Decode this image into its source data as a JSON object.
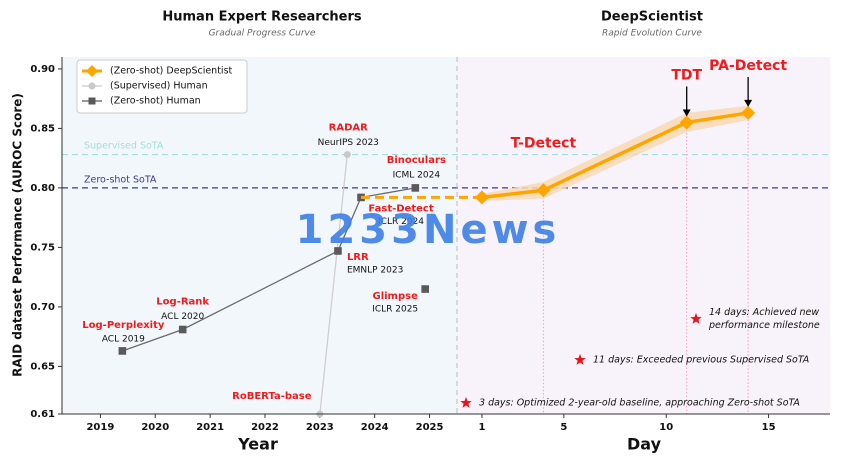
{
  "chart_data": [
    {
      "type": "line",
      "title": "Human Expert Researchers",
      "subtitle": "Gradual Progress Curve",
      "x_label": "Year",
      "y_label": "RAID dataset Performance (AUROC Score)",
      "xlim": [
        2018.3,
        2025.5
      ],
      "xticks": [
        2019,
        2020,
        2021,
        2022,
        2023,
        2024,
        2025
      ],
      "ylim": [
        0.61,
        0.91
      ],
      "yticks": [
        0.61,
        0.65,
        {
          "value": 0.7,
          "label": "0.70"
        },
        0.75,
        {
          "value": 0.8,
          "label": "0.80"
        },
        0.85,
        {
          "value": 0.9,
          "label": "0.90"
        }
      ],
      "reference_lines": [
        {
          "label": "Supervised SoTA",
          "value": 0.828,
          "color": "#a3dede"
        },
        {
          "label": "Zero-shot SoTA",
          "value": 0.8,
          "color": "#3b3b8f"
        }
      ],
      "series": [
        {
          "name": "(Supervised) Human",
          "color": "#c9c9c9",
          "marker": "circle",
          "x": [
            2023.0,
            2023.5
          ],
          "values": [
            0.61,
            0.828
          ],
          "labels": [
            "RoBERTa-base",
            "RADAR"
          ],
          "venues": [
            null,
            "NeurIPS 2023"
          ]
        },
        {
          "name": "(Zero-shot) Human",
          "color": "#5a5a5a",
          "marker": "square",
          "x": [
            2019.4,
            2020.5,
            2023.33,
            2023.75,
            2024.74,
            null,
            2024.92
          ],
          "values": [
            0.663,
            0.681,
            0.747,
            0.792,
            0.8,
            null,
            0.715
          ],
          "labels": [
            "Log-Perplexity",
            "Log-Rank",
            "LRR",
            "Fast-Detect",
            "Binoculars",
            null,
            "Glimpse"
          ],
          "venues": [
            "ACL 2019",
            "ACL 2020",
            "EMNLP 2023",
            "ICLR 2024",
            "ICML 2024",
            null,
            "ICLR 2025"
          ]
        }
      ]
    },
    {
      "type": "line",
      "title": "DeepScientist",
      "subtitle": "Rapid Evolution Curve",
      "x_label": "Day",
      "xlim": [
        -0.22,
        18
      ],
      "xticks": [
        1,
        5,
        10,
        15
      ],
      "ylim": [
        0.61,
        0.91
      ],
      "series": [
        {
          "name": "(Zero-shot) DeepScientist",
          "color": "#ffa500",
          "band_color": "#f8d9b4",
          "marker": "diamond",
          "x": [
            1,
            4,
            11,
            14
          ],
          "values": [
            0.792,
            0.798,
            0.855,
            0.863
          ],
          "errors": [
            0.003,
            0.007,
            0.008,
            0.006
          ],
          "labels": [
            null,
            "T-Detect",
            "TDT",
            "PA-Detect"
          ]
        }
      ],
      "annotations": [
        "3 days: Optimized 2-year-old baseline, approaching Zero-shot SoTA",
        "11 days: Exceeded previous Supervised SoTA",
        [
          "14 days: Achieved new",
          "performance milestone"
        ]
      ]
    }
  ],
  "watermark": "1233News"
}
